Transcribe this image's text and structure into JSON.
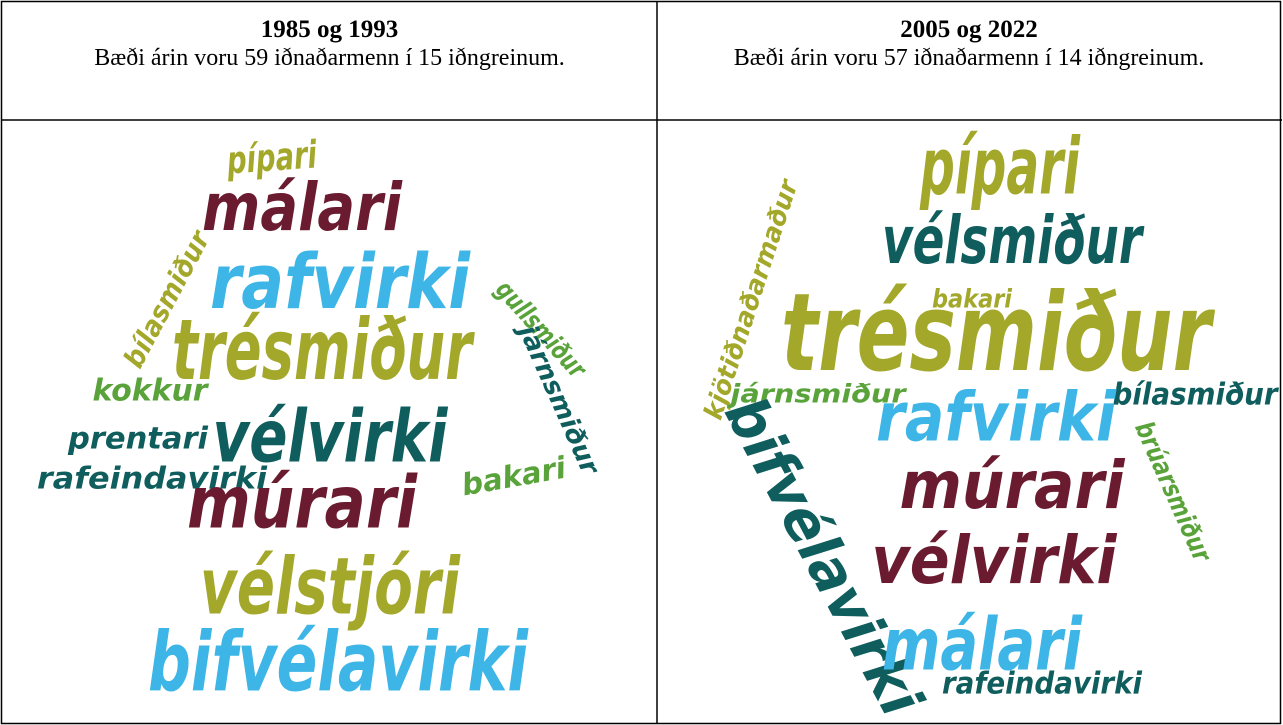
{
  "table": {
    "headers": [
      {
        "title": "1985 og 1993",
        "text": "Bæði árin voru 59 iðnaðarmenn í 15 iðngreinum."
      },
      {
        "title": "2005 og 2022",
        "text": "Bæði árin voru 57 iðnaðarmenn í 14 iðngreinum."
      }
    ],
    "clouds": [
      {
        "words": [
          {
            "text": "pípari",
            "color": "#a3a82b"
          },
          {
            "text": "málari",
            "color": "#6b1b30"
          },
          {
            "text": "rafvirki",
            "color": "#3db5e6"
          },
          {
            "text": "bílasmiður",
            "color": "#a3a82b"
          },
          {
            "text": "gullsmiður",
            "color": "#5aa33a"
          },
          {
            "text": "járnsmiður",
            "color": "#0f5d5d"
          },
          {
            "text": "trésmiður",
            "color": "#a3a82b"
          },
          {
            "text": "kokkur",
            "color": "#5aa33a"
          },
          {
            "text": "prentari",
            "color": "#0f5d5d"
          },
          {
            "text": "vélvirki",
            "color": "#0f5d5d"
          },
          {
            "text": "rafeindavirki",
            "color": "#0f5d5d"
          },
          {
            "text": "bakari",
            "color": "#5aa33a"
          },
          {
            "text": "múrari",
            "color": "#6b1b30"
          },
          {
            "text": "vélstjóri",
            "color": "#a3a82b"
          },
          {
            "text": "bifvélavirki",
            "color": "#3db5e6"
          }
        ]
      },
      {
        "words": [
          {
            "text": "kjötiðnaðarmaður",
            "color": "#a3a82b"
          },
          {
            "text": "pípari",
            "color": "#a3a82b"
          },
          {
            "text": "vélsmiður",
            "color": "#0f5d5d"
          },
          {
            "text": "bakari",
            "color": "#a3a82b"
          },
          {
            "text": "trésmiður",
            "color": "#a3a82b"
          },
          {
            "text": "járnsmiður",
            "color": "#5aa33a"
          },
          {
            "text": "bílasmiður",
            "color": "#0f5d5d"
          },
          {
            "text": "rafvirki",
            "color": "#3db5e6"
          },
          {
            "text": "brúarsmiður",
            "color": "#5aa33a"
          },
          {
            "text": "bifvélavirki",
            "color": "#0f5d5d"
          },
          {
            "text": "múrari",
            "color": "#6b1b30"
          },
          {
            "text": "vélvirki",
            "color": "#6b1b30"
          },
          {
            "text": "málari",
            "color": "#3db5e6"
          },
          {
            "text": "rafeindavirki",
            "color": "#0f5d5d"
          }
        ]
      }
    ]
  }
}
